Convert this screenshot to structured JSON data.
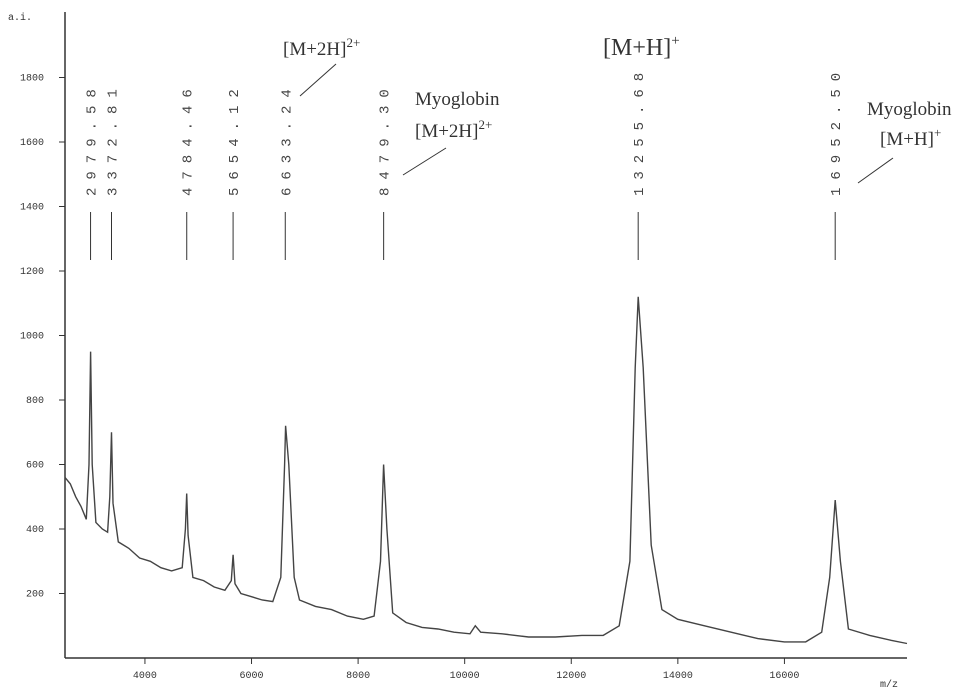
{
  "chart_data": {
    "type": "line",
    "y_label": "a.i.",
    "x_label": "m/z",
    "xlim": [
      2500,
      18300
    ],
    "ylim": [
      0,
      2000
    ],
    "xticks": [
      4000,
      6000,
      8000,
      10000,
      12000,
      14000,
      16000
    ],
    "yticks": [
      200,
      400,
      600,
      800,
      1000,
      1200,
      1400,
      1600,
      1800
    ],
    "color": "#444444",
    "x": [
      2500,
      2600,
      2700,
      2800,
      2900,
      2950,
      2980,
      3010,
      3080,
      3200,
      3300,
      3340,
      3373,
      3400,
      3500,
      3700,
      3900,
      4100,
      4300,
      4500,
      4700,
      4760,
      4784,
      4810,
      4900,
      5100,
      5300,
      5500,
      5620,
      5654,
      5690,
      5800,
      6000,
      6200,
      6400,
      6550,
      6620,
      6640,
      6700,
      6800,
      6900,
      7200,
      7500,
      7800,
      8100,
      8300,
      8420,
      8479,
      8540,
      8650,
      8900,
      9200,
      9500,
      9800,
      10100,
      10200,
      10300,
      10700,
      11200,
      11700,
      12200,
      12600,
      12900,
      13100,
      13200,
      13256,
      13350,
      13500,
      13700,
      14000,
      14500,
      15000,
      15500,
      16000,
      16400,
      16700,
      16850,
      16952,
      17050,
      17200,
      17600,
      18000,
      18300
    ],
    "y": [
      560,
      540,
      500,
      470,
      430,
      600,
      950,
      600,
      420,
      400,
      390,
      500,
      700,
      480,
      360,
      340,
      310,
      300,
      280,
      270,
      280,
      400,
      510,
      380,
      250,
      240,
      220,
      210,
      240,
      320,
      230,
      200,
      190,
      180,
      175,
      250,
      600,
      720,
      600,
      250,
      180,
      160,
      150,
      130,
      120,
      130,
      300,
      600,
      400,
      140,
      110,
      95,
      90,
      80,
      75,
      100,
      80,
      75,
      65,
      65,
      70,
      70,
      100,
      300,
      900,
      1120,
      900,
      350,
      150,
      120,
      100,
      80,
      60,
      50,
      50,
      80,
      250,
      490,
      300,
      90,
      70,
      55,
      45
    ],
    "peaks": [
      2979.58,
      3372.81,
      4784.46,
      5654.12,
      6633.24,
      {
        "value": 8479.3,
        "label": "8479.30"
      },
      13255.68,
      {
        "value": 16952.5,
        "label": "16952.50"
      }
    ],
    "annotations": [
      {
        "label": "[M+2H]",
        "sup": "2+"
      },
      {
        "label": "[M+H]",
        "sup": "+"
      },
      {
        "label": "Myoglobin"
      },
      {
        "label": "[M+2H]",
        "sup": "2+"
      },
      {
        "label": "Myoglobin"
      },
      {
        "label": "[M+H]",
        "sup": "+"
      }
    ]
  }
}
